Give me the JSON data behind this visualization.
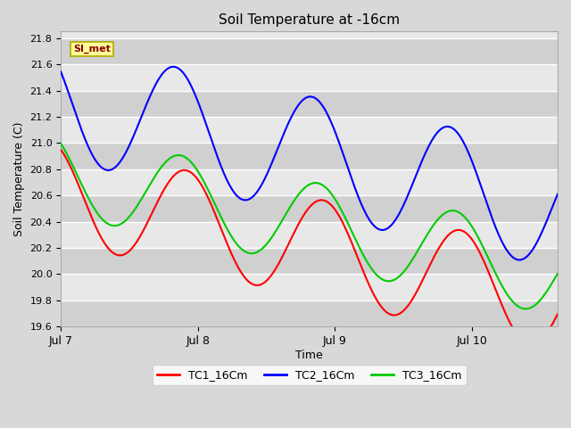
{
  "title": "Soil Temperature at -16cm",
  "xlabel": "Time",
  "ylabel": "Soil Temperature (C)",
  "ylim": [
    19.6,
    21.85
  ],
  "yticks": [
    19.6,
    19.8,
    20.0,
    20.2,
    20.4,
    20.6,
    20.8,
    21.0,
    21.2,
    21.4,
    21.6,
    21.8
  ],
  "xtick_positions": [
    0,
    24,
    48,
    72
  ],
  "xtick_labels": [
    "Jul 7",
    "Jul 8",
    "Jul 9",
    "Jul 10"
  ],
  "xlim": [
    0,
    87
  ],
  "line_colors": {
    "TC1_16Cm": "#ff0000",
    "TC2_16Cm": "#0000ff",
    "TC3_16Cm": "#00cc00"
  },
  "legend_label": "SI_met",
  "legend_box_facecolor": "#ffff99",
  "legend_box_edgecolor": "#aaaa00",
  "legend_text_color": "#880000",
  "fig_facecolor": "#d8d8d8",
  "ax_facecolor": "#e8e8e8",
  "band_color_dark": "#d0d0d0",
  "band_color_light": "#e8e8e8",
  "grid_color": "#ffffff",
  "linewidth": 1.5
}
